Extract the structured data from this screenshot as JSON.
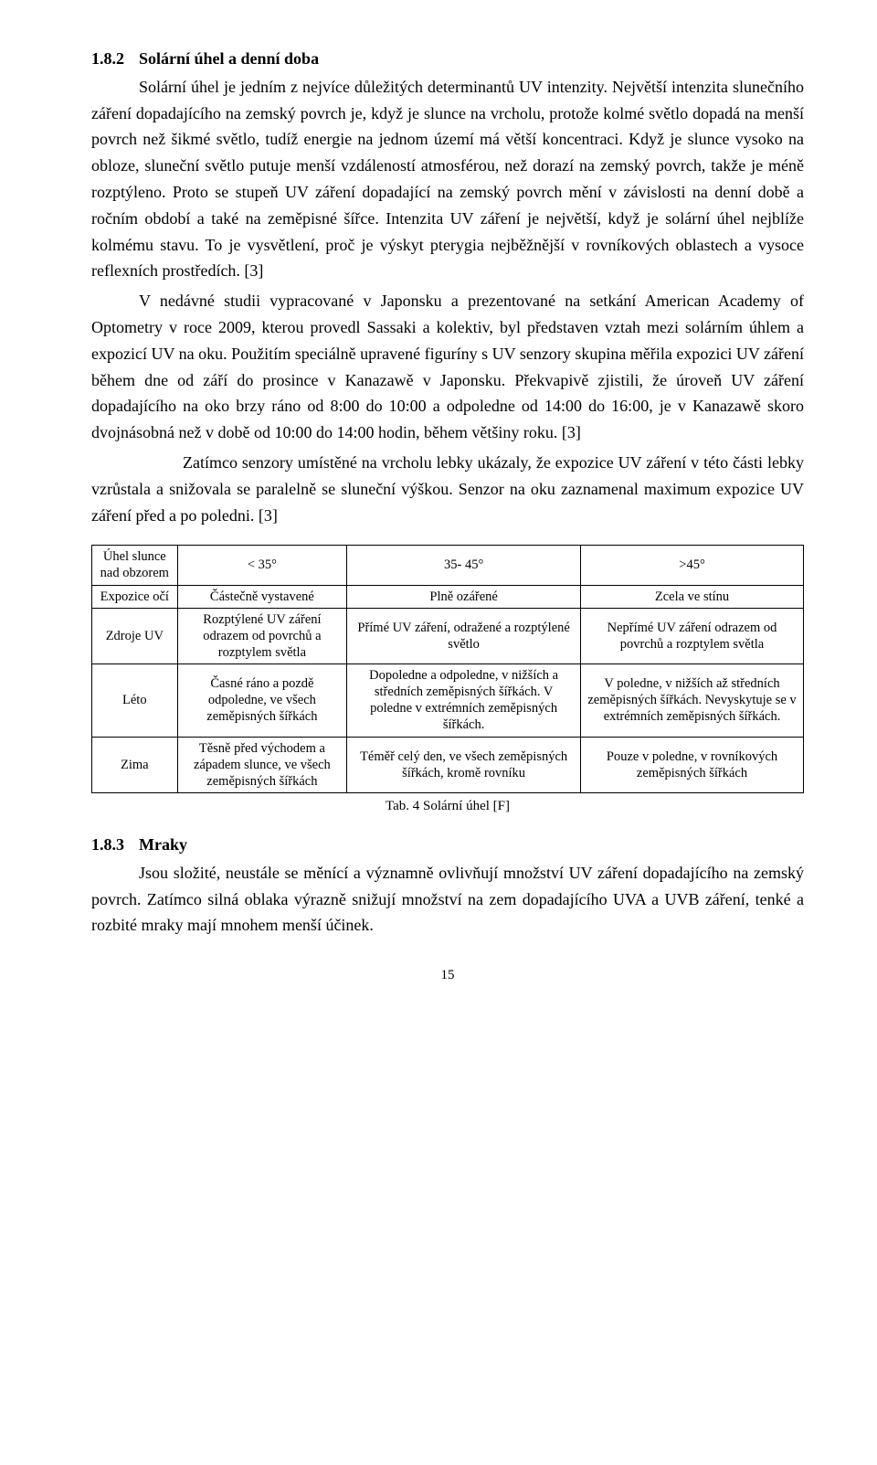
{
  "section1": {
    "number": "1.8.2",
    "title": "Solární úhel a denní doba",
    "p1": "Solární úhel je jedním z nejvíce důležitých determinantů UV intenzity. Největší intenzita slunečního záření dopadajícího na zemský povrch je, když je slunce na vrcholu, protože kolmé světlo dopadá na menší povrch než šikmé světlo, tudíž energie na jednom území má větší koncentraci. Když je slunce vysoko na obloze, sluneční světlo putuje menší vzdáleností atmosférou, než dorazí na zemský povrch, takže je méně rozptýleno. Proto se stupeň UV záření dopadající na zemský povrch mění v závislosti na denní době a ročním období a také na zeměpisné šířce. Intenzita UV záření je největší, když je solární úhel nejblíže kolmému stavu. To je vysvětlení, proč je výskyt pterygia nejběžnější v rovníkových oblastech a vysoce reflexních prostředích. [3]",
    "p2": "V nedávné studii vypracované v Japonsku a prezentované na setkání American Academy of Optometry v roce 2009, kterou provedl Sassaki a kolektiv, byl představen vztah mezi solárním úhlem a expozicí UV na oku. Použitím speciálně upravené figuríny s UV senzory skupina měřila expozici UV záření během dne od září do prosince v Kanazawě v Japonsku. Překvapivě zjistili, že úroveň UV záření dopadajícího na oko brzy ráno od 8:00 do 10:00 a odpoledne od 14:00 do 16:00, je v Kanazawě skoro dvojnásobná než v době od 10:00 do 14:00 hodin, během většiny roku. [3]",
    "p3": "Zatímco senzory umístěné na vrcholu lebky ukázaly, že expozice UV záření v této části lebky vzrůstala a snižovala se paralelně se sluneční výškou. Senzor na oku zaznamenal maximum expozice UV záření před a po poledni. [3]"
  },
  "table": {
    "caption": "Tab. 4 Solární úhel [F]",
    "header": [
      "Úhel slunce nad obzorem",
      "< 35°",
      "35- 45°",
      ">45°"
    ],
    "rows": [
      [
        "Expozice očí",
        "Částečně vystavené",
        "Plně ozářené",
        "Zcela ve stínu"
      ],
      [
        "Zdroje UV",
        "Rozptýlené UV záření odrazem od povrchů a rozptylem světla",
        "Přímé UV záření, odražené a rozptýlené světlo",
        "Nepřímé UV záření odrazem od povrchů a rozptylem světla"
      ],
      [
        "Léto",
        "Časné ráno a pozdě odpoledne, ve všech zeměpisných šířkách",
        "Dopoledne a odpoledne, v nižších a středních zeměpisných šířkách. V poledne v extrémních zeměpisných šířkách.",
        "V poledne, v nižších až středních zeměpisných šířkách. Nevyskytuje se v extrémních zeměpisných šířkách."
      ],
      [
        "Zima",
        "Těsně před východem a západem slunce, ve všech zeměpisných šířkách",
        "Téměř celý den, ve všech zeměpisných šířkách, kromě rovníku",
        "Pouze v poledne, v rovníkových zeměpisných šířkách"
      ]
    ]
  },
  "section2": {
    "number": "1.8.3",
    "title": "Mraky",
    "p1": "Jsou složité, neustále se měnící a významně ovlivňují množství UV záření dopadajícího na zemský povrch. Zatímco silná oblaka výrazně snižují množství na zem dopadajícího UVA a UVB záření, tenké a rozbité mraky mají mnohem menší účinek."
  },
  "pageNumber": "15"
}
